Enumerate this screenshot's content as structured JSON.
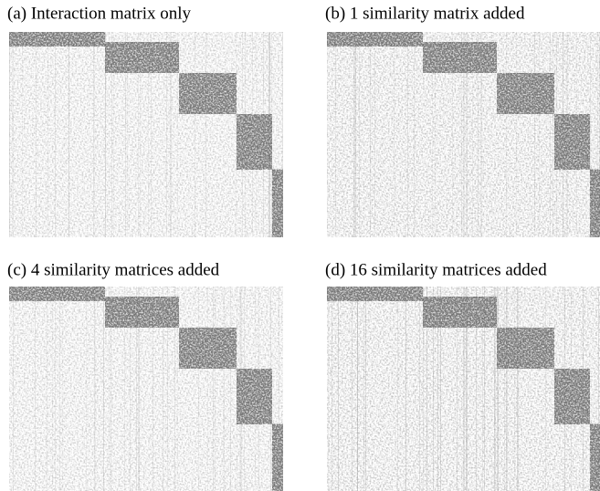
{
  "panels": [
    {
      "caption": "(a) Interaction matrix only"
    },
    {
      "caption": "(b) 1 similarity matrix added"
    },
    {
      "caption": "(c) 4 similarity matrices added"
    },
    {
      "caption": "(d) 16 similarity matrices added"
    }
  ]
}
